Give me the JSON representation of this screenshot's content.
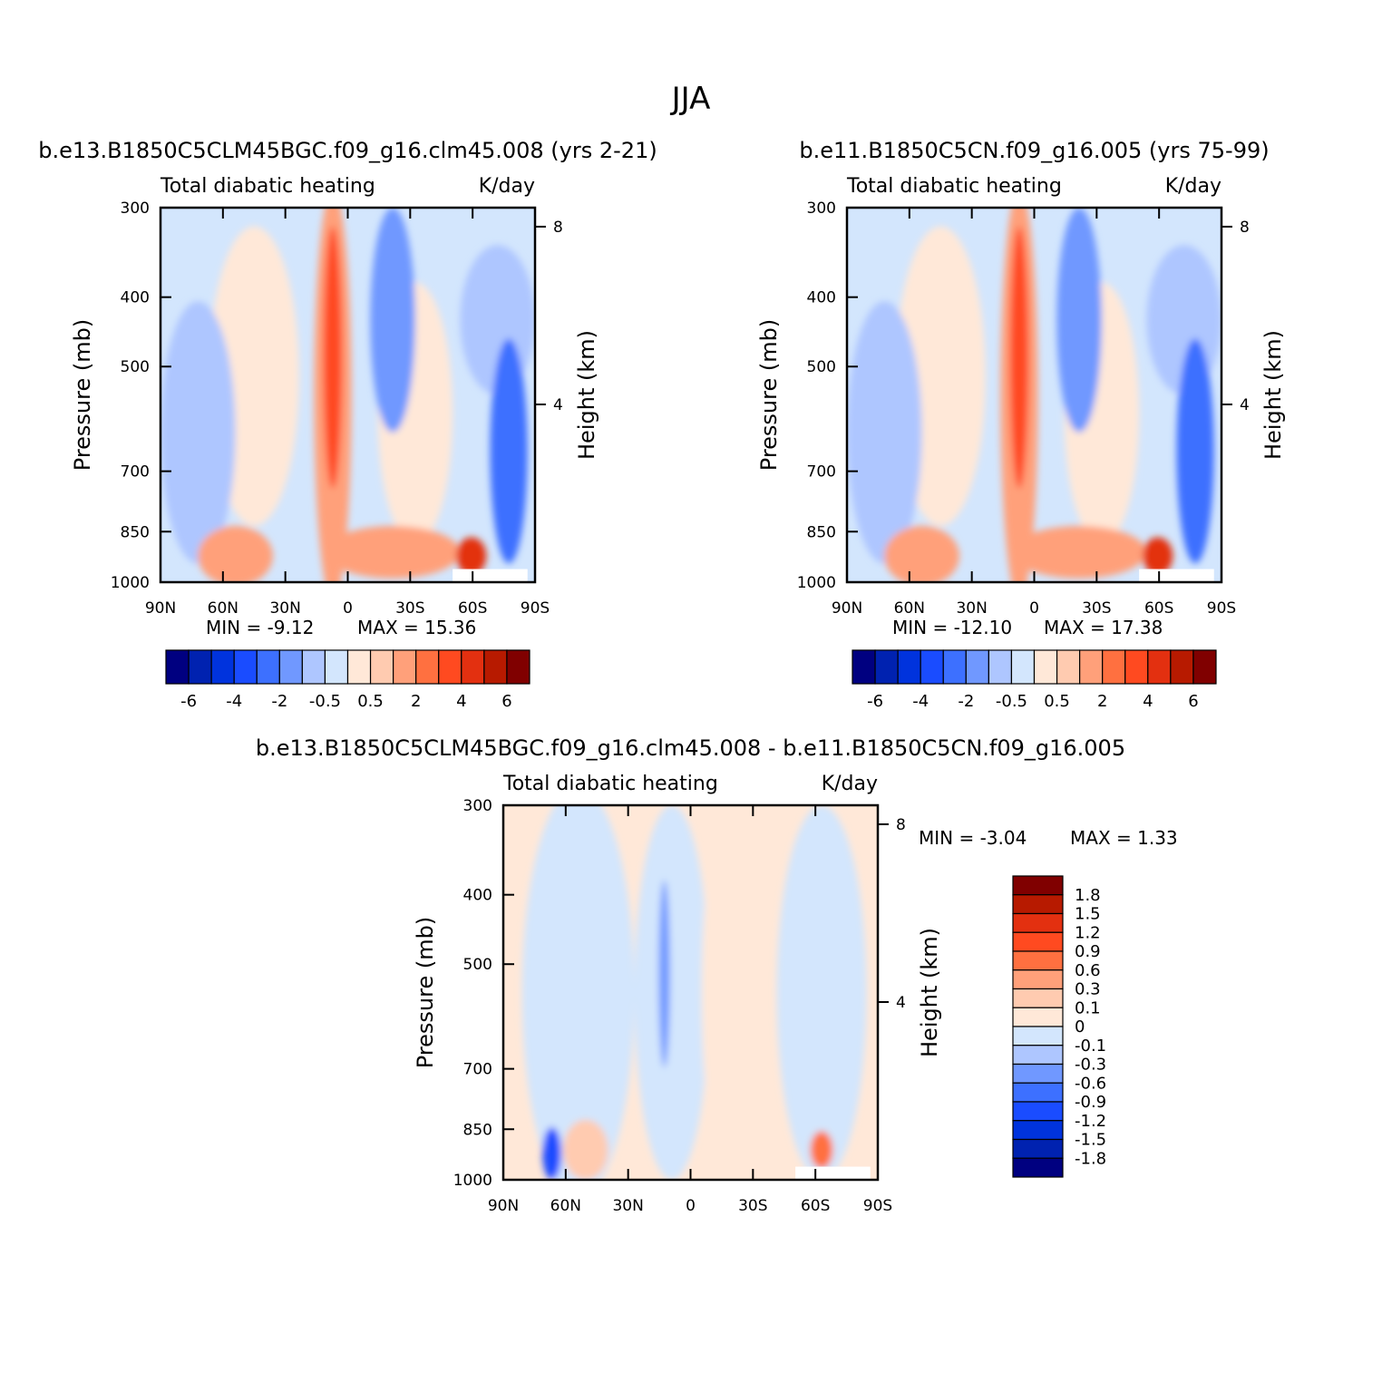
{
  "figure": {
    "title": "JJA"
  },
  "panels": [
    {
      "id": "left",
      "title": "b.e13.B1850C5CLM45BGC.f09_g16.clm45.008 (yrs 2-21)",
      "left_label": "Total diabatic heating",
      "right_label": "K/day",
      "min_text": "MIN =    -9.12",
      "max_text": "MAX =    15.36"
    },
    {
      "id": "right",
      "title": "b.e11.B1850C5CN.f09_g16.005 (yrs 75-99)",
      "left_label": "Total diabatic heating",
      "right_label": "K/day",
      "min_text": "MIN =  -12.10",
      "max_text": "MAX =    17.38"
    },
    {
      "id": "diff",
      "title": "b.e13.B1850C5CLM45BGC.f09_g16.clm45.008 - b.e11.B1850C5CN.f09_g16.005",
      "left_label": "Total diabatic heating",
      "right_label": "K/day",
      "min_text": "MIN =    -3.04",
      "max_text": "MAX =     1.33"
    }
  ],
  "chart_data": [
    {
      "type": "heatmap",
      "title": "b.e13.B1850C5CLM45BGC.f09_g16.clm45.008 (yrs 2-21)",
      "variable": "Total diabatic heating",
      "units": "K/day",
      "xlabel": "",
      "ylabel": "Pressure (mb)",
      "y2label": "Height (km)",
      "x_ticks": [
        "90N",
        "60N",
        "30N",
        "0",
        "30S",
        "60S",
        "90S"
      ],
      "y_ticks": [
        300,
        400,
        500,
        700,
        850,
        1000
      ],
      "y2_ticks": [
        8,
        4
      ],
      "min": -9.12,
      "max": 15.36,
      "colorbar_labels": [
        "-6",
        "-4",
        "-2",
        "-0.5",
        "0.5",
        "2",
        "4",
        "6"
      ],
      "colorbar_colors": [
        "#000080",
        "#0022b0",
        "#0033dd",
        "#1a4cff",
        "#3d70ff",
        "#7098ff",
        "#aec6ff",
        "#d3e6fd",
        "#ffe8d8",
        "#ffcbb0",
        "#ffa07a",
        "#ff7040",
        "#ff4a20",
        "#e33010",
        "#b71a00",
        "#800000"
      ]
    },
    {
      "type": "heatmap",
      "title": "b.e11.B1850C5CN.f09_g16.005 (yrs 75-99)",
      "variable": "Total diabatic heating",
      "units": "K/day",
      "xlabel": "",
      "ylabel": "Pressure (mb)",
      "y2label": "Height (km)",
      "x_ticks": [
        "90N",
        "60N",
        "30N",
        "0",
        "30S",
        "60S",
        "90S"
      ],
      "y_ticks": [
        300,
        400,
        500,
        700,
        850,
        1000
      ],
      "y2_ticks": [
        8,
        4
      ],
      "min": -12.1,
      "max": 17.38,
      "colorbar_labels": [
        "-6",
        "-4",
        "-2",
        "-0.5",
        "0.5",
        "2",
        "4",
        "6"
      ],
      "colorbar_colors": [
        "#000080",
        "#0022b0",
        "#0033dd",
        "#1a4cff",
        "#3d70ff",
        "#7098ff",
        "#aec6ff",
        "#d3e6fd",
        "#ffe8d8",
        "#ffcbb0",
        "#ffa07a",
        "#ff7040",
        "#ff4a20",
        "#e33010",
        "#b71a00",
        "#800000"
      ]
    },
    {
      "type": "heatmap",
      "title": "b.e13.B1850C5CLM45BGC.f09_g16.clm45.008 - b.e11.B1850C5CN.f09_g16.005",
      "variable": "Total diabatic heating",
      "units": "K/day",
      "xlabel": "",
      "ylabel": "Pressure (mb)",
      "y2label": "Height (km)",
      "x_ticks": [
        "90N",
        "60N",
        "30N",
        "0",
        "30S",
        "60S",
        "90S"
      ],
      "y_ticks": [
        300,
        400,
        500,
        700,
        850,
        1000
      ],
      "y2_ticks": [
        8,
        4
      ],
      "min": -3.04,
      "max": 1.33,
      "colorbar_labels": [
        "1.8",
        "1.5",
        "1.2",
        "0.9",
        "0.6",
        "0.3",
        "0.1",
        "0",
        "-0.1",
        "-0.3",
        "-0.6",
        "-0.9",
        "-1.2",
        "-1.5",
        "-1.8"
      ],
      "colorbar_colors": [
        "#800000",
        "#b71a00",
        "#e33010",
        "#ff4a20",
        "#ff7040",
        "#ffa07a",
        "#ffcbb0",
        "#ffe8d8",
        "#d3e6fd",
        "#aec6ff",
        "#7098ff",
        "#3d70ff",
        "#1a4cff",
        "#0033dd",
        "#0022b0",
        "#000080"
      ]
    }
  ]
}
